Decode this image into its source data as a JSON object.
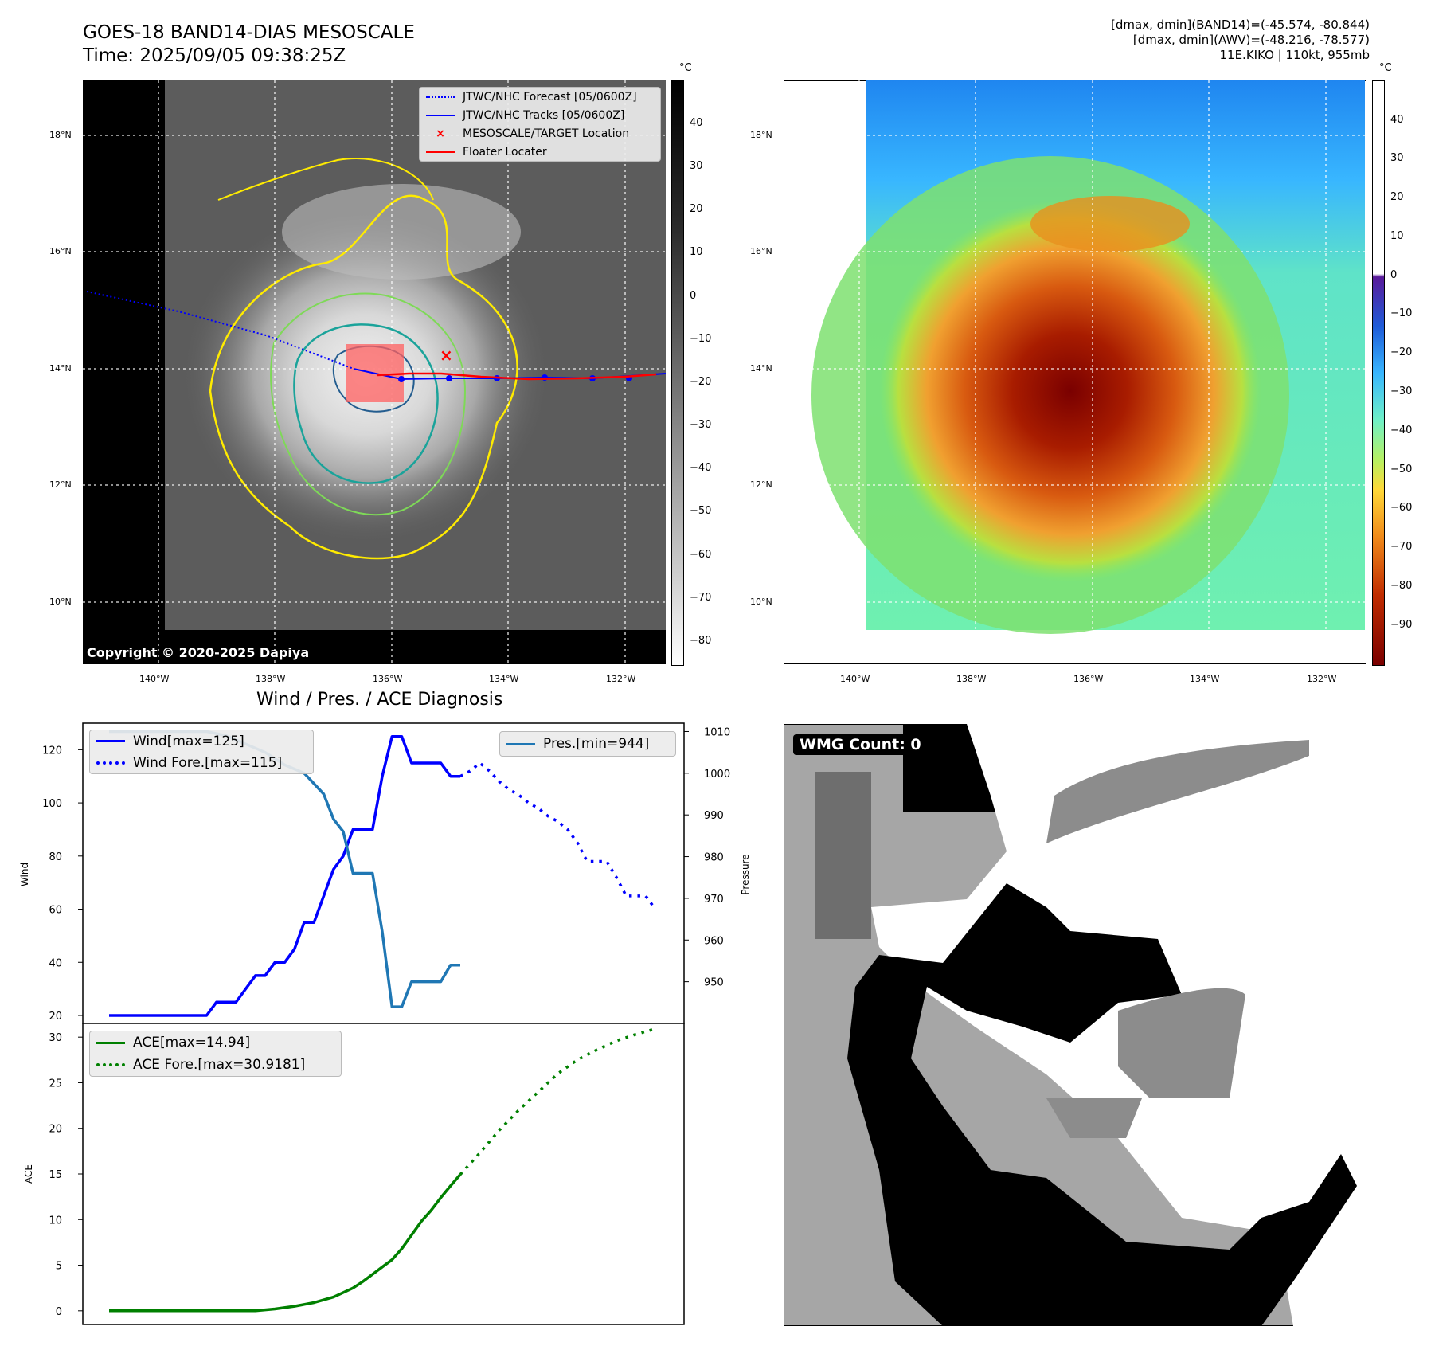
{
  "header": {
    "title_line1": "GOES-18 BAND14-DIAS MESOSCALE",
    "title_line2": "Time: 2025/09/05 09:38:25Z",
    "stats_line1": "[dmax, dmin](BAND14)=(-45.574, -80.844)",
    "stats_line2": "[dmax, dmin](AWV)=(-48.216, -78.577)",
    "stats_line3": "11E.KIKO | 110kt, 955mb"
  },
  "map_axes": {
    "lat_labels": [
      "18°N",
      "16°N",
      "14°N",
      "12°N",
      "10°N"
    ],
    "lon_labels": [
      "140°W",
      "138°W",
      "136°W",
      "134°W",
      "132°W"
    ]
  },
  "ir_panel": {
    "legend": [
      "JTWC/NHC Forecast [05/0600Z]",
      "JTWC/NHC Tracks [05/0600Z]",
      "MESOSCALE/TARGET Location",
      "Floater Locater"
    ],
    "copyright": "Copyright © 2020-2025 Dapiya",
    "colorbar_unit": "°C",
    "colorbar_ticks": [
      "40",
      "30",
      "20",
      "10",
      "0",
      "−10",
      "−20",
      "−30",
      "−40",
      "−50",
      "−60",
      "−70",
      "−80"
    ]
  },
  "awv_panel": {
    "colorbar_unit": "°C",
    "colorbar_ticks": [
      "40",
      "30",
      "20",
      "10",
      "0",
      "−10",
      "−20",
      "−30",
      "−40",
      "−50",
      "−60",
      "−70",
      "−80",
      "−90"
    ]
  },
  "wmg_panel": {
    "label": "WMG Count: 0"
  },
  "diagnosis_title": "Wind / Pres. / ACE Diagnosis",
  "chart_data": [
    {
      "type": "line",
      "title": "Wind / Pres. / ACE Diagnosis",
      "ylabel": "Wind",
      "y2label": "Pressure",
      "ylim": [
        17,
        130
      ],
      "y2lim": [
        940,
        1012
      ],
      "yticks": [
        20,
        40,
        60,
        80,
        100,
        120
      ],
      "y2ticks": [
        950,
        960,
        970,
        980,
        990,
        1000,
        1010
      ],
      "xlim": [
        0,
        56
      ],
      "series": [
        {
          "name": "Wind[max=125]",
          "axis": "left",
          "style": "solid",
          "color": "#0000ff",
          "x": [
            0,
            1,
            2,
            3,
            4,
            5,
            6,
            7,
            8,
            9,
            10,
            11,
            12,
            13,
            14,
            15,
            16,
            17,
            18,
            19,
            20,
            21,
            22,
            23,
            24,
            25,
            26,
            27,
            28,
            29,
            30,
            31,
            32,
            33,
            34,
            35,
            36
          ],
          "y": [
            20,
            20,
            20,
            20,
            20,
            20,
            20,
            20,
            20,
            20,
            20,
            25,
            25,
            25,
            30,
            35,
            35,
            40,
            40,
            45,
            55,
            55,
            65,
            75,
            80,
            90,
            90,
            90,
            110,
            125,
            125,
            115,
            115,
            115,
            115,
            110,
            110
          ]
        },
        {
          "name": "Wind Fore.[max=115]",
          "axis": "left",
          "style": "dotted",
          "color": "#0000ff",
          "x": [
            36,
            37,
            38,
            39,
            40,
            41,
            42,
            43,
            44,
            45,
            46,
            47,
            48,
            49,
            50,
            51,
            52,
            53,
            54,
            55,
            56
          ],
          "y": [
            110,
            112,
            115,
            112,
            108,
            105,
            103,
            100,
            98,
            95,
            93,
            90,
            85,
            78,
            78,
            78,
            72,
            65,
            65,
            65,
            60
          ]
        },
        {
          "name": "Pres.[min=944]",
          "axis": "right",
          "style": "solid",
          "color": "#1f77b4",
          "x": [
            0,
            5,
            10,
            12,
            14,
            16,
            18,
            20,
            22,
            23,
            24,
            25,
            26,
            27,
            28,
            29,
            30,
            31,
            32,
            33,
            34,
            35,
            36
          ],
          "y": [
            1010,
            1010,
            1010,
            1009,
            1007,
            1005,
            1002,
            1000,
            995,
            989,
            986,
            976,
            976,
            976,
            962,
            944,
            944,
            950,
            950,
            950,
            950,
            954,
            954
          ]
        }
      ],
      "legend_left": [
        "Wind[max=125]",
        "Wind Fore.[max=115]"
      ],
      "legend_right": [
        "Pres.[min=944]"
      ]
    },
    {
      "type": "line",
      "ylabel": "ACE",
      "ylim": [
        -1.5,
        31.5
      ],
      "yticks": [
        0,
        5,
        10,
        15,
        20,
        25,
        30
      ],
      "xlim": [
        0,
        56
      ],
      "series": [
        {
          "name": "ACE[max=14.94]",
          "style": "solid",
          "color": "#008000",
          "x": [
            0,
            5,
            10,
            13,
            15,
            17,
            19,
            20,
            21,
            22,
            23,
            24,
            25,
            26,
            27,
            28,
            29,
            30,
            31,
            32,
            33,
            34,
            35,
            36
          ],
          "y": [
            0,
            0,
            0,
            0,
            0,
            0.2,
            0.5,
            0.7,
            0.9,
            1.2,
            1.5,
            2,
            2.5,
            3.2,
            4,
            4.8,
            5.6,
            6.8,
            8.3,
            9.8,
            11,
            12.4,
            13.7,
            14.94
          ]
        },
        {
          "name": "ACE Fore.[max=30.9181]",
          "style": "dotted",
          "color": "#008000",
          "x": [
            36,
            38,
            40,
            42,
            44,
            46,
            48,
            50,
            52,
            54,
            56
          ],
          "y": [
            14.94,
            17.3,
            19.8,
            22,
            24,
            26,
            27.5,
            28.6,
            29.6,
            30.3,
            30.9181
          ]
        }
      ],
      "legend": [
        "ACE[max=14.94]",
        "ACE Fore.[max=30.9181]"
      ]
    }
  ]
}
